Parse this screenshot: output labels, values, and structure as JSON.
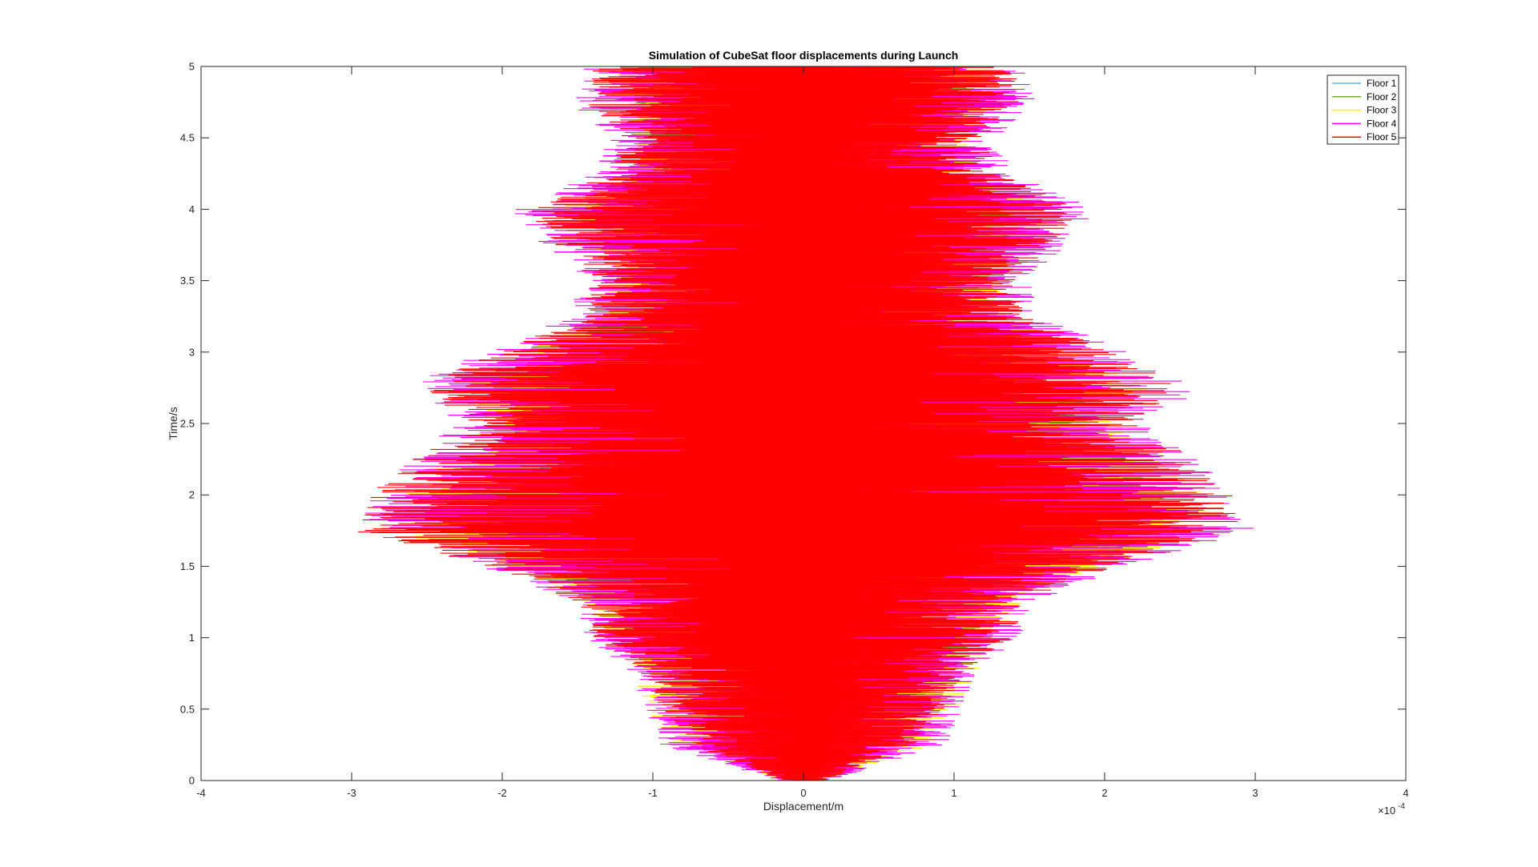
{
  "chart_data": {
    "type": "line",
    "title": "Simulation of CubeSat floor displacements during Launch",
    "xlabel": "Displacement/m",
    "ylabel": "Time/s",
    "x_exponent_label": "×10",
    "x_exponent_value": "-4",
    "xlim": [
      -4,
      4
    ],
    "ylim": [
      0,
      5
    ],
    "x_scale_factor": 0.0001,
    "x_ticks": [
      "-4",
      "-3",
      "-2",
      "-1",
      "0",
      "1",
      "2",
      "3",
      "4"
    ],
    "y_ticks": [
      "0",
      "0.5",
      "1",
      "1.5",
      "2",
      "2.5",
      "3",
      "3.5",
      "4",
      "4.5",
      "5"
    ],
    "grid": false,
    "legend_position": "top-right",
    "series": [
      {
        "name": "Floor 1",
        "color": "#4DBEEE",
        "envelope": [
          [
            0,
            0.05
          ],
          [
            0.25,
            0.4
          ],
          [
            0.5,
            0.55
          ],
          [
            0.75,
            0.75
          ],
          [
            1,
            0.9
          ],
          [
            1.25,
            1.05
          ],
          [
            1.5,
            1.6
          ],
          [
            1.75,
            2.2
          ],
          [
            2,
            2.0
          ],
          [
            2.25,
            1.8
          ],
          [
            2.5,
            1.6
          ],
          [
            2.75,
            1.7
          ],
          [
            3,
            1.4
          ],
          [
            3.25,
            1.0
          ],
          [
            3.5,
            0.95
          ],
          [
            3.75,
            1.1
          ],
          [
            4,
            1.2
          ],
          [
            4.25,
            0.9
          ],
          [
            4.5,
            0.8
          ],
          [
            4.75,
            0.95
          ],
          [
            5,
            0.95
          ]
        ]
      },
      {
        "name": "Floor 2",
        "color": "#77AC30",
        "envelope": [
          [
            0,
            0.08
          ],
          [
            0.25,
            0.55
          ],
          [
            0.5,
            0.75
          ],
          [
            0.75,
            0.95
          ],
          [
            1,
            1.15
          ],
          [
            1.25,
            1.3
          ],
          [
            1.5,
            1.9
          ],
          [
            1.75,
            2.6
          ],
          [
            2,
            2.4
          ],
          [
            2.25,
            2.2
          ],
          [
            2.5,
            1.9
          ],
          [
            2.75,
            2.1
          ],
          [
            3,
            1.7
          ],
          [
            3.25,
            1.25
          ],
          [
            3.5,
            1.15
          ],
          [
            3.75,
            1.35
          ],
          [
            4,
            1.45
          ],
          [
            4.25,
            1.1
          ],
          [
            4.5,
            1.0
          ],
          [
            4.75,
            1.15
          ],
          [
            5,
            1.15
          ]
        ]
      },
      {
        "name": "Floor 3",
        "color": "#FFFF00",
        "envelope": [
          [
            0,
            0.15
          ],
          [
            0.25,
            0.85
          ],
          [
            0.5,
            1.05
          ],
          [
            0.75,
            1.15
          ],
          [
            1,
            1.3
          ],
          [
            1.25,
            1.45
          ],
          [
            1.5,
            2.0
          ],
          [
            1.75,
            2.8
          ],
          [
            2,
            2.65
          ],
          [
            2.25,
            2.45
          ],
          [
            2.5,
            2.1
          ],
          [
            2.75,
            2.3
          ],
          [
            3,
            1.9
          ],
          [
            3.25,
            1.4
          ],
          [
            3.5,
            1.3
          ],
          [
            3.75,
            1.5
          ],
          [
            4,
            1.65
          ],
          [
            4.25,
            1.2
          ],
          [
            4.5,
            1.1
          ],
          [
            4.75,
            1.3
          ],
          [
            5,
            1.3
          ]
        ]
      },
      {
        "name": "Floor 4",
        "color": "#FF00FF",
        "envelope": [
          [
            0,
            0.18
          ],
          [
            0.25,
            0.95
          ],
          [
            0.5,
            1.05
          ],
          [
            0.75,
            1.15
          ],
          [
            1,
            1.45
          ],
          [
            1.25,
            1.55
          ],
          [
            1.5,
            2.15
          ],
          [
            1.75,
            3.0
          ],
          [
            2,
            2.85
          ],
          [
            2.25,
            2.65
          ],
          [
            2.5,
            2.3
          ],
          [
            2.75,
            2.65
          ],
          [
            3,
            2.15
          ],
          [
            3.25,
            1.6
          ],
          [
            3.5,
            1.5
          ],
          [
            3.75,
            1.75
          ],
          [
            4,
            1.95
          ],
          [
            4.25,
            1.4
          ],
          [
            4.5,
            1.3
          ],
          [
            4.75,
            1.55
          ],
          [
            5,
            1.45
          ]
        ]
      },
      {
        "name": "Floor 5",
        "color": "#FF0000",
        "envelope": [
          [
            0,
            0.15
          ],
          [
            0.25,
            0.75
          ],
          [
            0.5,
            0.95
          ],
          [
            0.75,
            1.05
          ],
          [
            1,
            1.4
          ],
          [
            1.25,
            1.5
          ],
          [
            1.5,
            2.1
          ],
          [
            1.75,
            3.0
          ],
          [
            2,
            2.9
          ],
          [
            2.25,
            2.6
          ],
          [
            2.5,
            2.2
          ],
          [
            2.75,
            2.55
          ],
          [
            3,
            2.05
          ],
          [
            3.25,
            1.5
          ],
          [
            3.5,
            1.4
          ],
          [
            3.75,
            1.65
          ],
          [
            4,
            1.85
          ],
          [
            4.25,
            1.3
          ],
          [
            4.5,
            1.2
          ],
          [
            4.75,
            1.45
          ],
          [
            5,
            1.4
          ]
        ]
      }
    ]
  }
}
